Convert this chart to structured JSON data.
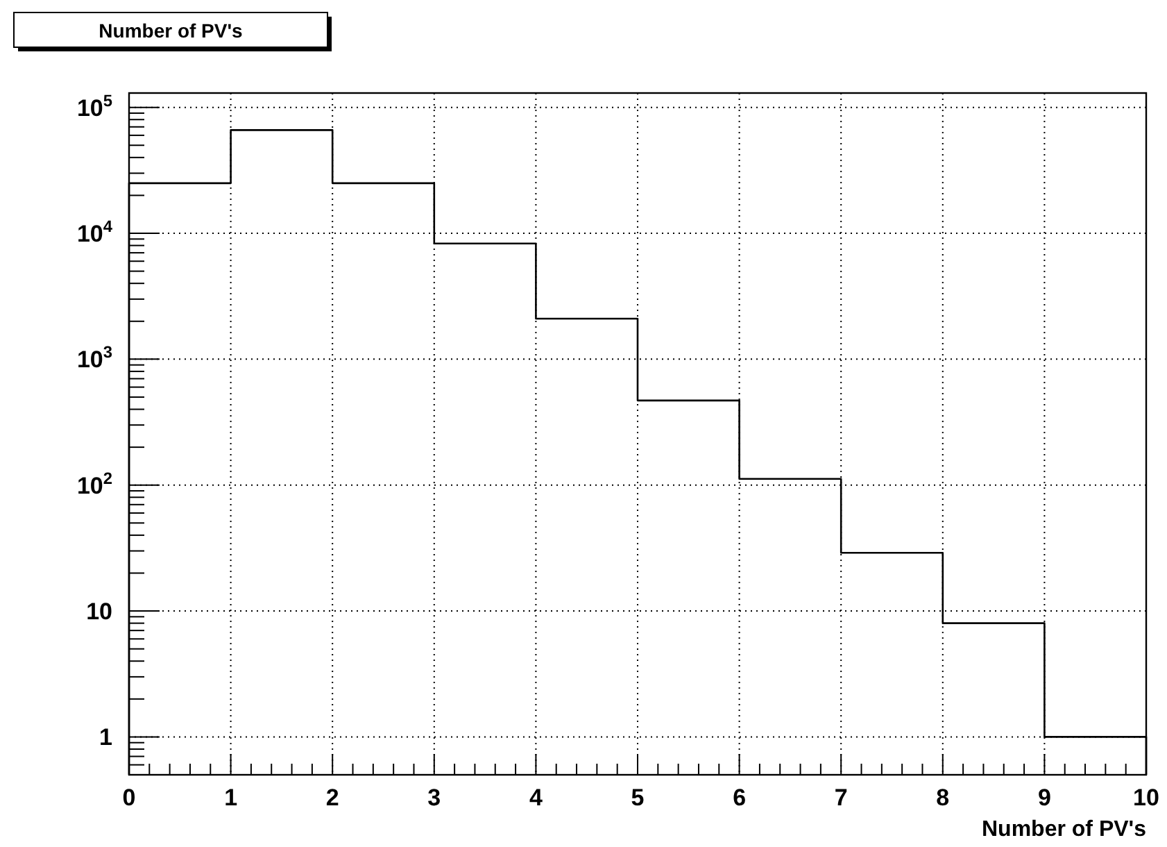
{
  "chart_data": {
    "type": "histogram",
    "title": "Number of PV's",
    "xlabel": "Number of PV's",
    "bins": [
      0,
      1,
      2,
      3,
      4,
      5,
      6,
      7,
      8,
      9,
      10
    ],
    "values": [
      25000,
      66000,
      25000,
      8300,
      2100,
      470,
      112,
      29,
      8,
      1
    ],
    "color": "#000000",
    "log": true,
    "grid": true,
    "xlim": [
      0,
      10
    ],
    "xticks": [
      0,
      1,
      2,
      3,
      4,
      5,
      6,
      7,
      8,
      9,
      10
    ],
    "ylim": [
      0.5,
      130000
    ],
    "yticks": [
      1,
      10,
      {
        "value": 100,
        "label": "10$^{2}$"
      },
      {
        "value": 1000,
        "label": "10$^{3}$"
      },
      {
        "value": 10000,
        "label": "10$^{4}$"
      },
      {
        "value": 100000,
        "label": "10$^{5}$"
      }
    ]
  }
}
